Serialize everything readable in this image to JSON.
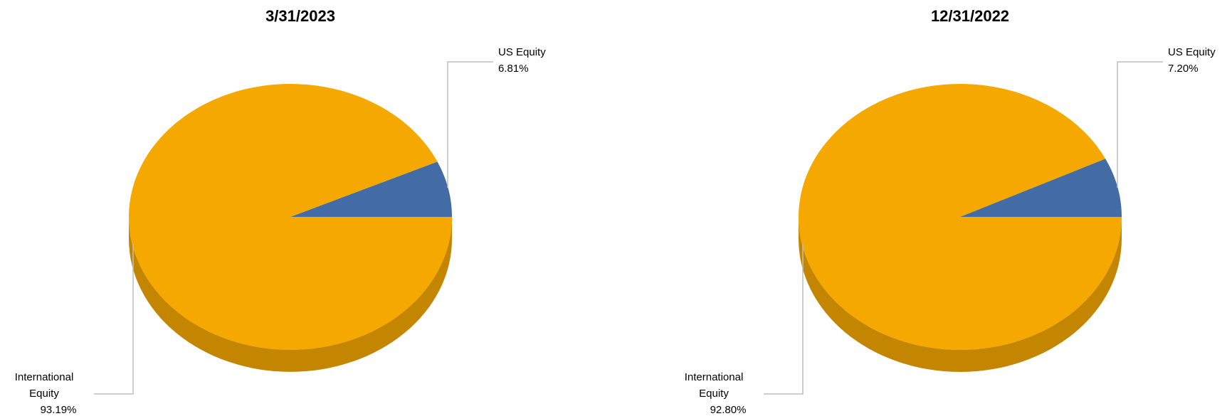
{
  "chart_data": [
    {
      "type": "pie",
      "title": "3/31/2023",
      "categories": [
        "US Equity",
        "International Equity"
      ],
      "values": [
        6.81,
        93.19
      ],
      "value_labels": [
        "6.81%",
        "93.19%"
      ],
      "colors": [
        "#436ba6",
        "#f5a800"
      ]
    },
    {
      "type": "pie",
      "title": "12/31/2022",
      "categories": [
        "US Equity",
        "International Equity"
      ],
      "values": [
        7.2,
        92.8
      ],
      "value_labels": [
        "7.20%",
        "92.80%"
      ],
      "colors": [
        "#436ba6",
        "#f5a800"
      ]
    }
  ]
}
